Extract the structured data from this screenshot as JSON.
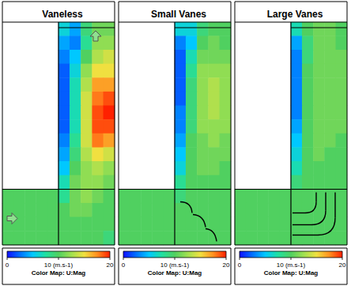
{
  "chart_data": [
    {
      "type": "heatmap",
      "title": "Vaneless",
      "tick_labels": false,
      "cells": [
        [
          null,
          null,
          null,
          null,
          null,
          6,
          4,
          9,
          11,
          11
        ],
        [
          null,
          null,
          null,
          null,
          null,
          4,
          3,
          8,
          12,
          12
        ],
        [
          null,
          null,
          null,
          null,
          null,
          3,
          5,
          10,
          13,
          14
        ],
        [
          null,
          null,
          null,
          null,
          null,
          2,
          6,
          12,
          15,
          15
        ],
        [
          null,
          null,
          null,
          null,
          null,
          2,
          7,
          13,
          17,
          17
        ],
        [
          null,
          null,
          null,
          null,
          null,
          2,
          7,
          14,
          18,
          19
        ],
        [
          null,
          null,
          null,
          null,
          null,
          2,
          7,
          14,
          19,
          20
        ],
        [
          null,
          null,
          null,
          null,
          null,
          2,
          7,
          14,
          19,
          19
        ],
        [
          null,
          null,
          null,
          null,
          null,
          3,
          8,
          14,
          18,
          17
        ],
        [
          null,
          null,
          null,
          null,
          null,
          4,
          9,
          13,
          15,
          14
        ],
        [
          null,
          null,
          null,
          null,
          null,
          5,
          10,
          12,
          13,
          12
        ],
        [
          null,
          null,
          null,
          null,
          null,
          7,
          11,
          12,
          12,
          11
        ],
        [
          10,
          10,
          10,
          10,
          10,
          8,
          11,
          12,
          11,
          10
        ],
        [
          10,
          10,
          10,
          10,
          10,
          10,
          11,
          11,
          10,
          10
        ],
        [
          10,
          10,
          10,
          10,
          10,
          10,
          10,
          10,
          10,
          10
        ],
        [
          10,
          10,
          10,
          10,
          10,
          10,
          10,
          10,
          10,
          9
        ]
      ],
      "colorbar": {
        "range": [
          0,
          20
        ],
        "ticks": [
          0,
          {
            "value": 10,
            "label": "10 (m.s-1)"
          },
          20
        ],
        "label": "Color Map: U:Mag"
      }
    },
    {
      "type": "heatmap",
      "title": "Small Vanes",
      "tick_labels": false,
      "cells": [
        [
          null,
          null,
          null,
          null,
          null,
          6,
          6,
          9,
          10,
          10
        ],
        [
          null,
          null,
          null,
          null,
          null,
          3,
          5,
          10,
          11,
          10
        ],
        [
          null,
          null,
          null,
          null,
          null,
          2,
          7,
          11,
          11,
          11
        ],
        [
          null,
          null,
          null,
          null,
          null,
          2,
          8,
          12,
          12,
          12
        ],
        [
          null,
          null,
          null,
          null,
          null,
          2,
          9,
          12,
          13,
          12
        ],
        [
          null,
          null,
          null,
          null,
          null,
          2,
          9,
          12,
          13,
          12
        ],
        [
          null,
          null,
          null,
          null,
          null,
          3,
          9,
          12,
          13,
          12
        ],
        [
          null,
          null,
          null,
          null,
          null,
          3,
          9,
          12,
          12,
          12
        ],
        [
          null,
          null,
          null,
          null,
          null,
          4,
          10,
          11,
          12,
          11
        ],
        [
          null,
          null,
          null,
          null,
          null,
          5,
          10,
          11,
          11,
          11
        ],
        [
          null,
          null,
          null,
          null,
          null,
          6,
          10,
          11,
          11,
          10
        ],
        [
          null,
          null,
          null,
          null,
          null,
          8,
          10,
          10,
          10,
          10
        ],
        [
          10,
          10,
          10,
          10,
          10,
          9,
          10,
          10,
          10,
          10
        ],
        [
          10,
          10,
          10,
          10,
          10,
          10,
          10,
          10,
          10,
          10
        ],
        [
          10,
          10,
          10,
          10,
          10,
          10,
          10,
          10,
          10,
          10
        ],
        [
          10,
          10,
          10,
          10,
          10,
          10,
          10,
          10,
          10,
          10
        ]
      ],
      "colorbar": {
        "range": [
          0,
          20
        ],
        "ticks": [
          0,
          {
            "value": 10,
            "label": "10 (m.s-1)"
          },
          20
        ],
        "label": "Color Map: U:Mag"
      }
    },
    {
      "type": "heatmap",
      "title": "Large Vanes",
      "tick_labels": false,
      "cells": [
        [
          null,
          null,
          null,
          null,
          null,
          7,
          10,
          11,
          11,
          10
        ],
        [
          null,
          null,
          null,
          null,
          null,
          4,
          9,
          11,
          11,
          10
        ],
        [
          null,
          null,
          null,
          null,
          null,
          3,
          9,
          11,
          11,
          11
        ],
        [
          null,
          null,
          null,
          null,
          null,
          3,
          10,
          11,
          11,
          11
        ],
        [
          null,
          null,
          null,
          null,
          null,
          3,
          10,
          11,
          11,
          11
        ],
        [
          null,
          null,
          null,
          null,
          null,
          3,
          10,
          11,
          11,
          11
        ],
        [
          null,
          null,
          null,
          null,
          null,
          3,
          10,
          11,
          11,
          11
        ],
        [
          null,
          null,
          null,
          null,
          null,
          4,
          10,
          11,
          11,
          11
        ],
        [
          null,
          null,
          null,
          null,
          null,
          5,
          10,
          11,
          11,
          10
        ],
        [
          null,
          null,
          null,
          null,
          null,
          6,
          10,
          11,
          10,
          10
        ],
        [
          null,
          null,
          null,
          null,
          null,
          7,
          10,
          10,
          10,
          10
        ],
        [
          null,
          null,
          null,
          null,
          null,
          9,
          10,
          10,
          10,
          10
        ],
        [
          10,
          10,
          10,
          10,
          10,
          10,
          10,
          10,
          10,
          10
        ],
        [
          10,
          10,
          10,
          10,
          10,
          10,
          10,
          10,
          10,
          10
        ],
        [
          10,
          10,
          10,
          10,
          10,
          10,
          10,
          10,
          10,
          10
        ],
        [
          10,
          10,
          10,
          10,
          10,
          10,
          10,
          10,
          10,
          10
        ]
      ],
      "colorbar": {
        "range": [
          0,
          20
        ],
        "ticks": [
          0,
          {
            "value": 10,
            "label": "10 (m.s-1)"
          },
          20
        ],
        "label": "Color Map: U:Mag"
      }
    }
  ]
}
